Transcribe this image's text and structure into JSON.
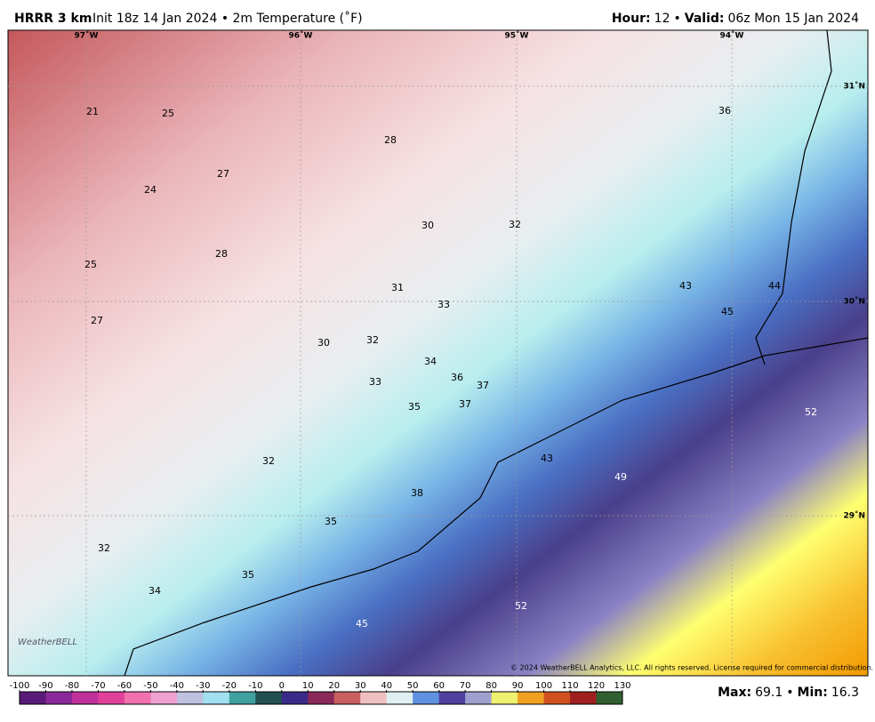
{
  "header": {
    "model": "HRRR 3 km",
    "run": "Init 18z 14 Jan 2024 • 2m Temperature (˚F)",
    "hour_label": "Hour:",
    "hour": 12,
    "separator": "•",
    "valid_label": "Valid:",
    "valid": "06z Mon 15 Jan 2024"
  },
  "map": {
    "longitude_labels": [
      "97˚W",
      "96˚W",
      "95˚W",
      "94˚W"
    ],
    "latitude_labels": [
      "31˚N",
      "30˚N",
      "29˚N"
    ],
    "station_values": [
      21,
      25,
      28,
      27,
      24,
      30,
      32,
      25,
      28,
      31,
      33,
      27,
      30,
      32,
      34,
      36,
      37,
      33,
      35,
      37,
      32,
      43,
      49,
      38,
      35,
      32,
      35,
      34,
      52,
      45,
      36,
      43,
      44,
      45,
      52
    ],
    "copyright": "© 2024 WeatherBELL Analytics, LLC. All rights reserved. License required for commercial distribution.",
    "logo": "WeatherBELL"
  },
  "colorbar": {
    "ticks": [
      -100,
      -90,
      -80,
      -70,
      -60,
      -50,
      -40,
      -30,
      -20,
      -10,
      0,
      10,
      20,
      30,
      40,
      50,
      60,
      70,
      80,
      90,
      100,
      110,
      120,
      130
    ],
    "colors": [
      "#5a1a7a",
      "#8a2a9a",
      "#c0309a",
      "#e0409a",
      "#f070b0",
      "#f0a0d0",
      "#c0c0e0",
      "#a0e0f0",
      "#40a0a0",
      "#205050",
      "#3a2a8a",
      "#8a2a5a",
      "#c86060",
      "#f0c0c0",
      "#e0f0f0",
      "#6090e0",
      "#5040a0",
      "#a0a0d0",
      "#f0f070",
      "#f0a020",
      "#d05020",
      "#a02020",
      "#306030"
    ]
  },
  "stats": {
    "max_label": "Max:",
    "max": 69.1,
    "separator": "•",
    "min_label": "Min:",
    "min": 16.3
  }
}
